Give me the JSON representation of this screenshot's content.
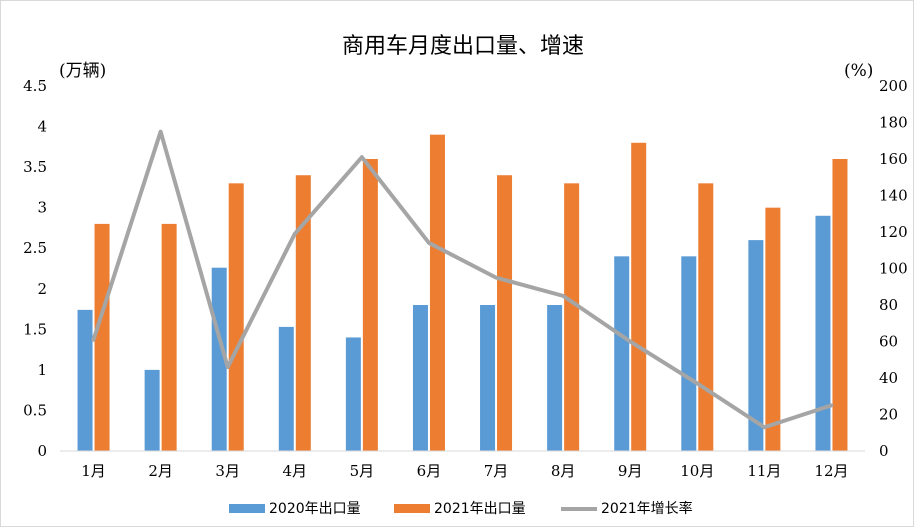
{
  "chart_data": {
    "type": "bar+line",
    "title": "商用车月度出口量、增速",
    "left_axis_unit": "(万辆)",
    "right_axis_unit": "(%)",
    "categories": [
      "1月",
      "2月",
      "3月",
      "4月",
      "5月",
      "6月",
      "7月",
      "8月",
      "9月",
      "10月",
      "11月",
      "12月"
    ],
    "left_ticks": [
      "0",
      "0.5",
      "1",
      "1.5",
      "2",
      "2.5",
      "3",
      "3.5",
      "4",
      "4.5"
    ],
    "right_ticks": [
      "0",
      "20",
      "40",
      "60",
      "80",
      "100",
      "120",
      "140",
      "160",
      "180",
      "200"
    ],
    "ylim_left": [
      0,
      4.5
    ],
    "ylim_right": [
      0,
      200
    ],
    "series": [
      {
        "name": "2020年出口量",
        "type": "bar",
        "axis": "left",
        "color": "#5b9bd5",
        "values": [
          1.74,
          1.0,
          2.26,
          1.53,
          1.4,
          1.8,
          1.8,
          1.8,
          2.4,
          2.4,
          2.6,
          2.9
        ]
      },
      {
        "name": "2021年出口量",
        "type": "bar",
        "axis": "left",
        "color": "#ed7d31",
        "values": [
          2.8,
          2.8,
          3.3,
          3.4,
          3.6,
          3.9,
          3.4,
          3.3,
          3.8,
          3.3,
          3.0,
          3.6
        ]
      },
      {
        "name": "2021年增长率",
        "type": "line",
        "axis": "right",
        "color": "#a5a5a5",
        "values": [
          61,
          175,
          46,
          119,
          161,
          114,
          95,
          85,
          60,
          37,
          13,
          25
        ]
      }
    ]
  }
}
